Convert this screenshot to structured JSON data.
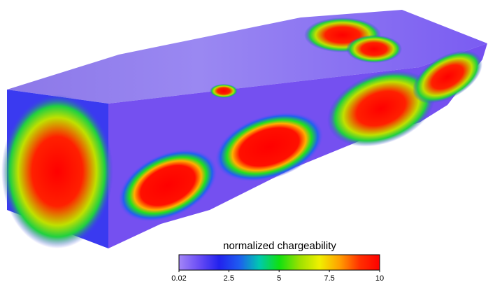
{
  "colorbar": {
    "label": "normalized chargeability",
    "lim": [
      0.02,
      10
    ],
    "ticks": [
      0.02,
      2.5,
      5,
      7.5,
      10
    ],
    "colors": [
      "#a386f7",
      "#6a4df5",
      "#2222ee",
      "#1e5cf0",
      "#00c8b0",
      "#10e010",
      "#9be000",
      "#f0f000",
      "#ffa000",
      "#ff3000",
      "#ff0000"
    ]
  }
}
